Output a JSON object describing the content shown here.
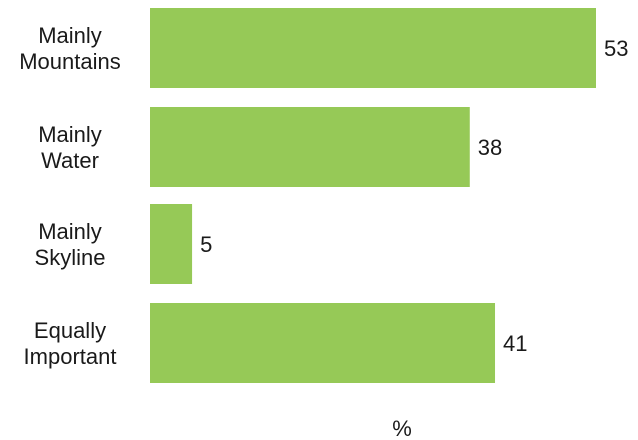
{
  "chart_data": {
    "type": "bar",
    "orientation": "horizontal",
    "categories": [
      [
        "Mainly",
        "Mountains"
      ],
      [
        "Mainly",
        "Water"
      ],
      [
        "Mainly",
        "Skyline"
      ],
      [
        "Equally",
        "Important"
      ]
    ],
    "values": [
      53,
      38,
      5,
      41
    ],
    "xlabel": "%",
    "xlim": [
      0,
      55
    ],
    "grid": false,
    "legend": "none",
    "bar_color": "#96c957"
  }
}
